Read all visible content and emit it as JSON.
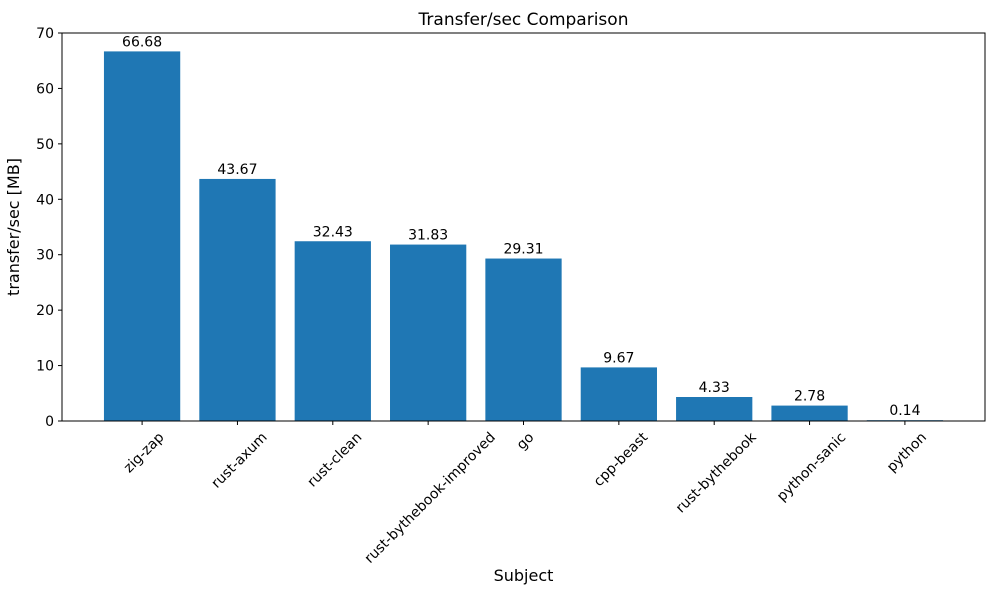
{
  "chart_data": {
    "type": "bar",
    "title": "Transfer/sec Comparison",
    "xlabel": "Subject",
    "ylabel": "transfer/sec [MB]",
    "categories": [
      "zig-zap",
      "rust-axum",
      "rust-clean",
      "rust-bythebook-improved",
      "go",
      "cpp-beast",
      "rust-bythebook",
      "python-sanic",
      "python"
    ],
    "values": [
      66.68,
      43.67,
      32.43,
      31.83,
      29.31,
      9.67,
      4.33,
      2.78,
      0.14
    ],
    "value_labels": [
      "66.68",
      "43.67",
      "32.43",
      "31.83",
      "29.31",
      "9.67",
      "4.33",
      "2.78",
      "0.14"
    ],
    "ylim": [
      0,
      70
    ],
    "yticks": [
      0,
      10,
      20,
      30,
      40,
      50,
      60,
      70
    ],
    "bar_color": "#1f77b4",
    "axis_color": "#000000",
    "grid": false,
    "legend": null,
    "x_tick_rotation_deg": 45
  }
}
